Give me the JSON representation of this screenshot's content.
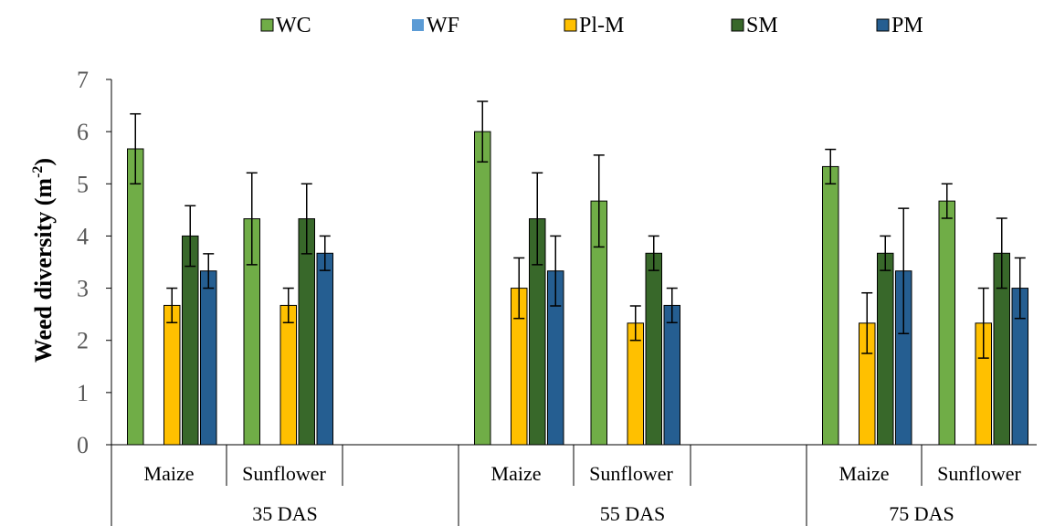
{
  "chart_data": {
    "type": "bar",
    "ylabel": "Weed diversity (m",
    "ylabel_sup": "-2",
    "ylabel_close": ")",
    "ylim": [
      0,
      7
    ],
    "yticks": [
      "0",
      "1",
      "2",
      "3",
      "4",
      "5",
      "6",
      "7"
    ],
    "grid": false,
    "legend_position": "top",
    "groups": [
      "35 DAS",
      "55 DAS",
      "75 DAS"
    ],
    "subgroups": [
      "Maize",
      "Sunflower"
    ],
    "series": [
      {
        "name": "WC",
        "color": "#70AD47",
        "values": [
          5.67,
          4.33,
          6.0,
          4.67,
          5.33,
          4.67
        ],
        "errors": [
          0.67,
          0.88,
          0.58,
          0.88,
          0.33,
          0.33
        ]
      },
      {
        "name": "WF",
        "color": "#5B9BD5",
        "values": [
          0,
          0,
          0,
          0,
          0,
          0
        ],
        "errors": [
          0,
          0,
          0,
          0,
          0,
          0
        ]
      },
      {
        "name": "Pl-M",
        "color": "#FFC000",
        "values": [
          2.67,
          2.67,
          3.0,
          2.33,
          2.33,
          2.33
        ],
        "errors": [
          0.33,
          0.33,
          0.58,
          0.33,
          0.58,
          0.67
        ]
      },
      {
        "name": "SM",
        "color": "#38682A",
        "values": [
          4.0,
          4.33,
          4.33,
          3.67,
          3.67,
          3.67
        ],
        "errors": [
          0.58,
          0.67,
          0.88,
          0.33,
          0.33,
          0.67
        ]
      },
      {
        "name": "PM",
        "color": "#255E91",
        "values": [
          3.33,
          3.67,
          3.33,
          2.67,
          3.33,
          3.0
        ],
        "errors": [
          0.33,
          0.33,
          0.67,
          0.33,
          1.2,
          0.58
        ]
      }
    ]
  }
}
